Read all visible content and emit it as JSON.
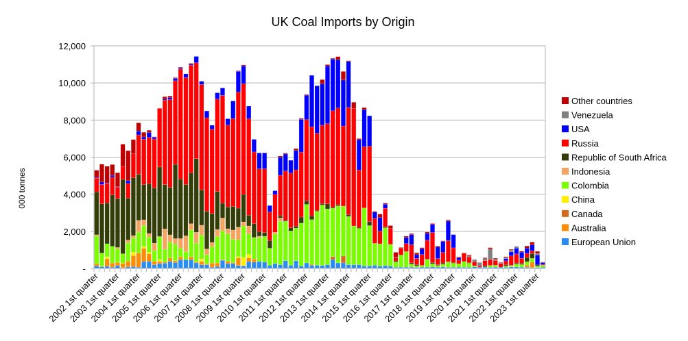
{
  "chart_data": {
    "type": "bar",
    "stacked": true,
    "title": "UK Coal Imports by Origin",
    "xlabel": "",
    "ylabel": "000 tonnes",
    "ylim": [
      0,
      12000
    ],
    "y_ticks": [
      0,
      2000,
      4000,
      6000,
      8000,
      10000,
      12000
    ],
    "y_tick_labels": [
      "-",
      "2,000",
      "4,000",
      "6,000",
      "8,000",
      "10,000",
      "12,000"
    ],
    "grid": true,
    "legend_position": "right",
    "first_period": "2002 1st quarter",
    "periods_per_label": 4,
    "x_tick_labels": [
      "2002 1st quarter",
      "2003 1st quarter",
      "2004 1st quarter",
      "2005 1st quarter",
      "2006 1st quarter",
      "2007 1st quarter",
      "2008 1st quarter",
      "2009 1st quarter",
      "2010 1st quarter",
      "2011 1st quarter",
      "2012 1st quarter",
      "2013 1st quarter",
      "2014 1st quarter",
      "2015 1st quarter",
      "2016 1st quarter",
      "2017 1st quarter",
      "2018 1st quarter",
      "2019 1st quarter",
      "2020 1st quarter",
      "2021 1st quarter",
      "2022 1st quarter",
      "2023 1st quarter"
    ],
    "series": [
      {
        "name": "European Union",
        "color": "#2a8cf0",
        "values": [
          135,
          100,
          120,
          70,
          150,
          40,
          90,
          100,
          70,
          370,
          380,
          200,
          260,
          280,
          380,
          320,
          470,
          470,
          470,
          300,
          200,
          200,
          70,
          110,
          440,
          260,
          260,
          160,
          130,
          370,
          340,
          380,
          340,
          170,
          260,
          200,
          420,
          170,
          410,
          130,
          300,
          170,
          170,
          160,
          200,
          480,
          300,
          300,
          200,
          200,
          200,
          130,
          130,
          170,
          120,
          150,
          120,
          60,
          70,
          70,
          70,
          60,
          70,
          70,
          80,
          70,
          80,
          60,
          60,
          70,
          60,
          60,
          80,
          70,
          70,
          60,
          70,
          70,
          60,
          80,
          80,
          70,
          60,
          40,
          50,
          60
        ]
      },
      {
        "name": "Australia",
        "color": "#ff8c00",
        "values": [
          120,
          0,
          400,
          220,
          170,
          230,
          300,
          590,
          760,
          710,
          410,
          180,
          120,
          60,
          180,
          90,
          150,
          0,
          150,
          50,
          170,
          50,
          220,
          180,
          30,
          120,
          60,
          410,
          30,
          200,
          160,
          0,
          0,
          0,
          0,
          0,
          0,
          0,
          0,
          0,
          0,
          50,
          0,
          0,
          0,
          0,
          0,
          0,
          0,
          0,
          0,
          0,
          0,
          0,
          0,
          0,
          0,
          0,
          0,
          0,
          30,
          0,
          0,
          0,
          0,
          0,
          10,
          0,
          0,
          0,
          0,
          0,
          0,
          0,
          0,
          0,
          0,
          0,
          0,
          0,
          0,
          0,
          120,
          300,
          0,
          0
        ]
      },
      {
        "name": "Canada",
        "color": "#d2691e",
        "values": [
          0,
          0,
          0,
          0,
          0,
          0,
          0,
          0,
          0,
          0,
          0,
          0,
          0,
          0,
          0,
          0,
          0,
          0,
          0,
          0,
          0,
          0,
          0,
          0,
          0,
          0,
          0,
          0,
          0,
          0,
          0,
          0,
          0,
          0,
          0,
          0,
          0,
          0,
          0,
          0,
          0,
          0,
          0,
          0,
          0,
          150,
          0,
          370,
          0,
          0,
          0,
          0,
          0,
          0,
          0,
          0,
          0,
          0,
          0,
          0,
          0,
          0,
          0,
          0,
          0,
          0,
          0,
          0,
          0,
          0,
          0,
          0,
          0,
          0,
          0,
          0,
          0,
          0,
          0,
          0,
          0,
          0,
          0,
          0,
          0,
          0
        ]
      },
      {
        "name": "China",
        "color": "#ffee00",
        "values": [
          0,
          30,
          110,
          0,
          0,
          0,
          0,
          180,
          0,
          100,
          80,
          0,
          90,
          0,
          0,
          0,
          0,
          0,
          0,
          0,
          140,
          0,
          0,
          0,
          0,
          0,
          0,
          60,
          430,
          180,
          0,
          0,
          0,
          0,
          0,
          0,
          0,
          0,
          0,
          0,
          0,
          0,
          0,
          0,
          0,
          0,
          0,
          0,
          0,
          0,
          0,
          0,
          0,
          0,
          0,
          0,
          0,
          0,
          0,
          0,
          0,
          0,
          0,
          0,
          0,
          0,
          0,
          0,
          0,
          0,
          0,
          0,
          0,
          0,
          10,
          0,
          0,
          0,
          0,
          20,
          0,
          0,
          0,
          0,
          0,
          0
        ]
      },
      {
        "name": "Colombia",
        "color": "#7cfc00",
        "values": [
          1500,
          700,
          700,
          900,
          740,
          520,
          980,
          780,
          1130,
          1130,
          820,
          580,
          1230,
          690,
          860,
          900,
          470,
          430,
          1450,
          1020,
          1290,
          490,
          890,
          1430,
          1550,
          1480,
          1260,
          920,
          1700,
          1110,
          1170,
          1270,
          1390,
          920,
          1600,
          2340,
          2120,
          1850,
          1760,
          2310,
          3150,
          2410,
          2910,
          3260,
          3010,
          2610,
          3070,
          2690,
          2600,
          2090,
          1960,
          3130,
          2180,
          1180,
          1210,
          2040,
          1180,
          280,
          650,
          840,
          130,
          80,
          90,
          420,
          170,
          90,
          130,
          280,
          220,
          180,
          310,
          220,
          60,
          0,
          0,
          100,
          100,
          0,
          70,
          50,
          150,
          140,
          180,
          200,
          80,
          100
        ]
      },
      {
        "name": "Indonesia",
        "color": "#f4a460",
        "values": [
          60,
          0,
          0,
          0,
          70,
          0,
          160,
          120,
          630,
          310,
          190,
          400,
          20,
          1100,
          390,
          300,
          520,
          860,
          340,
          580,
          530,
          310,
          220,
          380,
          700,
          280,
          490,
          680,
          220,
          430,
          0,
          90,
          0,
          0,
          90,
          180,
          0,
          0,
          0,
          0,
          0,
          0,
          0,
          0,
          0,
          0,
          0,
          0,
          0,
          0,
          0,
          0,
          0,
          0,
          0,
          0,
          0,
          0,
          0,
          0,
          0,
          0,
          0,
          0,
          0,
          0,
          0,
          0,
          0,
          0,
          0,
          0,
          0,
          0,
          0,
          0,
          0,
          0,
          0,
          0,
          0,
          0,
          0,
          0,
          0,
          0
        ]
      },
      {
        "name": "Republic of South Africa",
        "color": "#333d08",
        "values": [
          2310,
          2650,
          2200,
          2770,
          2640,
          4010,
          2260,
          3120,
          2480,
          1910,
          2680,
          2980,
          3750,
          2390,
          2560,
          4000,
          3210,
          2770,
          2740,
          3970,
          1910,
          2030,
          1560,
          2050,
          800,
          1170,
          1270,
          1020,
          1480,
          580,
          740,
          250,
          210,
          420,
          0,
          120,
          50,
          170,
          100,
          330,
          200,
          200,
          50,
          70,
          270,
          60,
          60,
          0,
          100,
          0,
          60,
          0,
          220,
          0,
          0,
          40,
          0,
          60,
          0,
          0,
          70,
          60,
          0,
          0,
          70,
          40,
          70,
          20,
          40,
          0,
          0,
          30,
          0,
          0,
          60,
          0,
          0,
          0,
          60,
          30,
          60,
          60,
          230,
          260,
          60,
          20
        ]
      },
      {
        "name": "Russia",
        "color": "#ff0000",
        "values": [
          740,
          1050,
          1050,
          970,
          620,
          700,
          790,
          1300,
          2130,
          2440,
          2500,
          2640,
          3150,
          4550,
          4740,
          4510,
          5930,
          5760,
          5810,
          5170,
          5680,
          5040,
          4540,
          4980,
          5810,
          4420,
          4740,
          6260,
          5970,
          5200,
          3870,
          3380,
          3430,
          1540,
          2040,
          2180,
          2660,
          2950,
          3040,
          3490,
          4370,
          4810,
          4160,
          4230,
          4320,
          5200,
          5220,
          4320,
          5780,
          6340,
          3080,
          3300,
          4060,
          1350,
          690,
          1010,
          860,
          180,
          370,
          430,
          980,
          340,
          590,
          1030,
          1620,
          330,
          570,
          1140,
          790,
          200,
          450,
          310,
          220,
          70,
          280,
          320,
          260,
          200,
          220,
          500,
          490,
          280,
          220,
          150,
          0,
          40
        ]
      },
      {
        "name": "USA",
        "color": "#0000ff",
        "values": [
          40,
          130,
          30,
          90,
          20,
          0,
          150,
          0,
          210,
          120,
          270,
          100,
          0,
          60,
          100,
          120,
          60,
          200,
          60,
          340,
          170,
          370,
          220,
          340,
          400,
          340,
          950,
          1110,
          950,
          680,
          680,
          860,
          860,
          340,
          200,
          980,
          920,
          690,
          1050,
          1770,
          1320,
          2770,
          2560,
          2230,
          3120,
          2790,
          2600,
          2480,
          2480,
          0,
          1640,
          2000,
          1640,
          340,
          730,
          220,
          0,
          20,
          0,
          330,
          540,
          200,
          310,
          370,
          430,
          630,
          590,
          1050,
          710,
          120,
          0,
          0,
          0,
          0,
          0,
          0,
          0,
          20,
          120,
          210,
          310,
          330,
          280,
          320,
          530,
          90
        ]
      },
      {
        "name": "Venezuela",
        "color": "#808080",
        "values": [
          0,
          0,
          0,
          0,
          0,
          0,
          0,
          0,
          0,
          0,
          0,
          0,
          0,
          0,
          0,
          0,
          0,
          0,
          0,
          0,
          0,
          0,
          0,
          0,
          0,
          0,
          0,
          0,
          0,
          0,
          0,
          0,
          0,
          0,
          0,
          0,
          0,
          0,
          0,
          0,
          0,
          0,
          0,
          0,
          0,
          0,
          0,
          0,
          0,
          0,
          0,
          0,
          0,
          0,
          0,
          0,
          0,
          0,
          0,
          0,
          0,
          0,
          0,
          0,
          0,
          0,
          0,
          0,
          20,
          0,
          0,
          60,
          120,
          160,
          150,
          570,
          70,
          30,
          50,
          100,
          100,
          0,
          0,
          0,
          90,
          0
        ]
      },
      {
        "name": "Other countries",
        "color": "#c00000",
        "values": [
          390,
          960,
          900,
          580,
          750,
          1200,
          1620,
          760,
          440,
          250,
          120,
          20,
          20,
          130,
          90,
          50,
          40,
          0,
          40,
          0,
          0,
          0,
          0,
          0,
          0,
          0,
          0,
          40,
          60,
          0,
          0,
          0,
          0,
          0,
          0,
          60,
          50,
          0,
          100,
          60,
          40,
          0,
          0,
          230,
          70,
          40,
          170,
          460,
          40,
          330,
          60,
          110,
          0,
          40,
          180,
          60,
          150,
          270,
          40,
          70,
          60,
          100,
          60,
          70,
          50,
          50,
          40,
          60,
          0,
          50,
          20,
          50,
          0,
          20,
          20,
          70,
          50,
          20,
          50,
          40,
          0,
          50,
          120,
          150,
          110,
          30
        ]
      }
    ]
  }
}
